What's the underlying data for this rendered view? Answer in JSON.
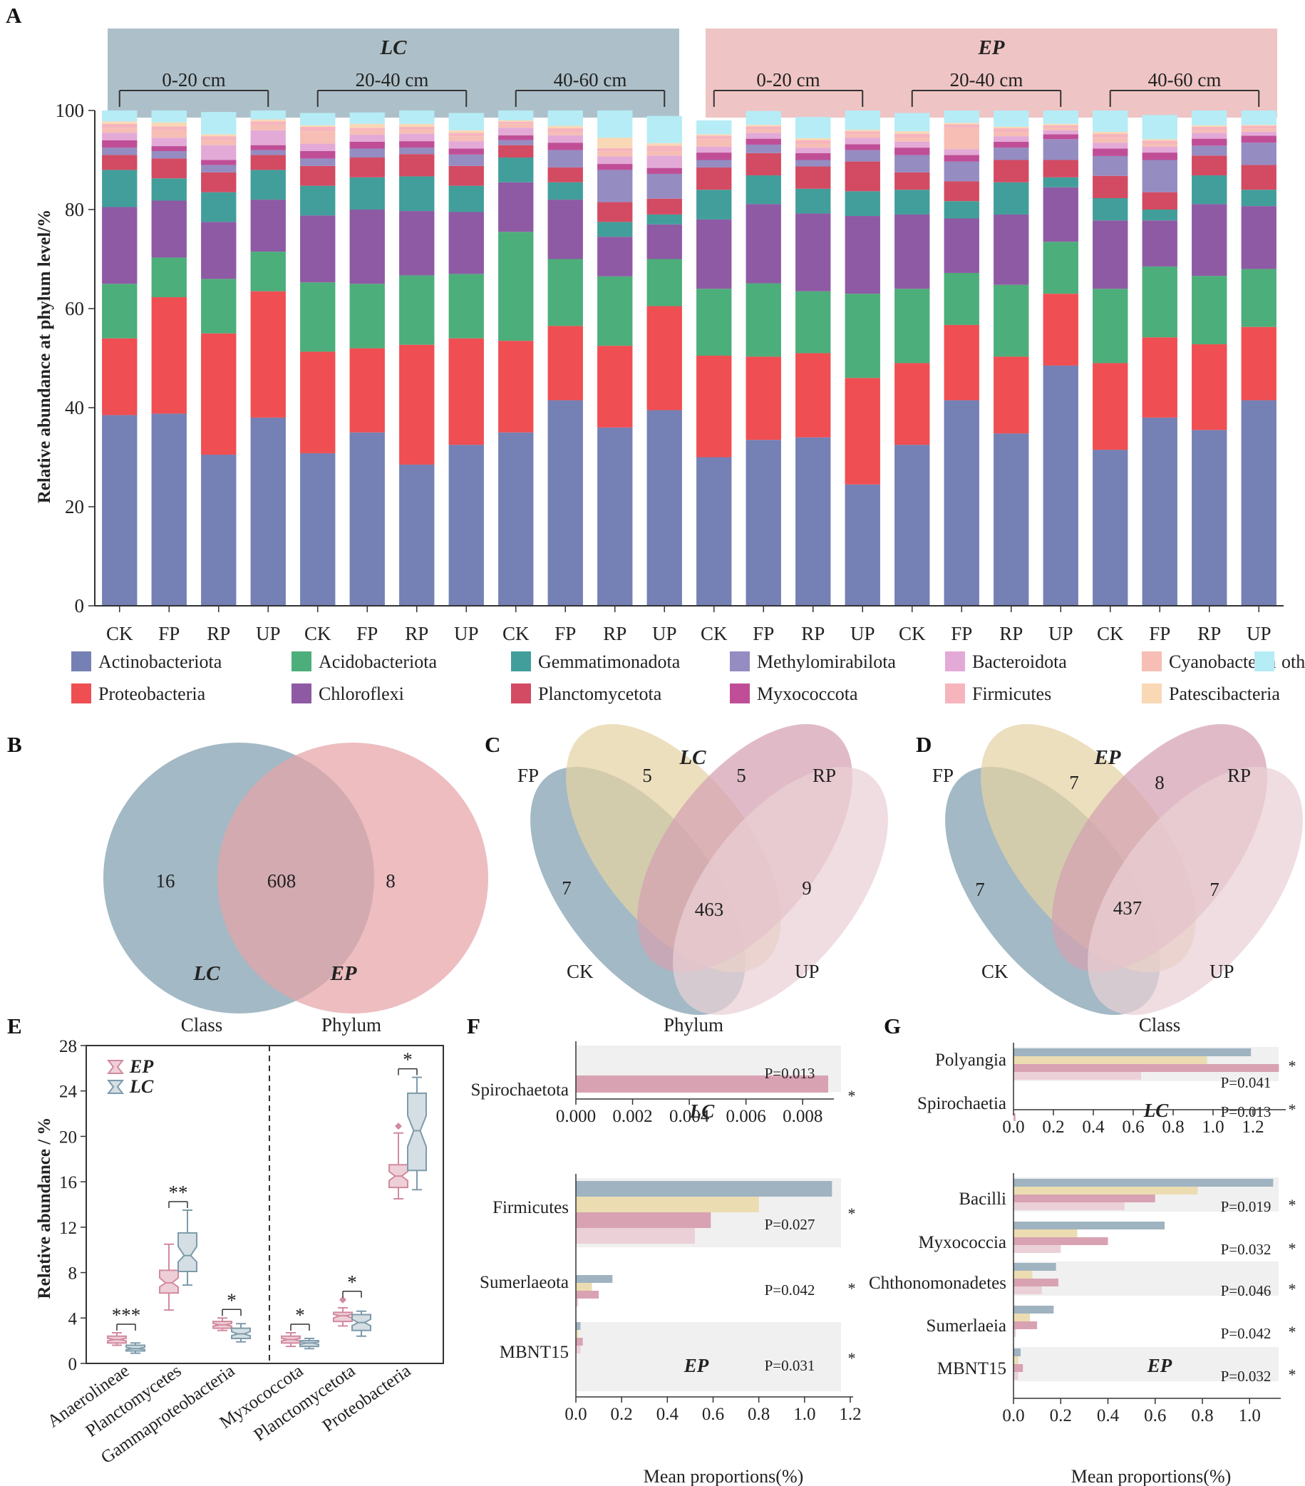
{
  "panel_letters": [
    "A",
    "B",
    "C",
    "D",
    "E",
    "F",
    "G"
  ],
  "colors": {
    "LC": "#9fb5c1",
    "EP": "#e6a4a8",
    "LC_band": "#adc0c9",
    "EP_band": "#efc4c4",
    "venn_CK": "#7f9eae",
    "venn_FP": "#e5d3a4",
    "venn_RP": "#d4a1b1",
    "venn_UP": "#ead0d6",
    "bar_lc": "#9fb3c0",
    "bar_fp": "#ecdcb1",
    "bar_rp": "#d8a2b2",
    "bar_up": "#ebd0d7",
    "ep_box": "#d18a9f",
    "lc_box": "#7d9bab"
  },
  "chart_data": [
    {
      "id": "A",
      "type": "bar",
      "stacked": true,
      "ylabel": "Relative abundance at phylum level/%",
      "ylim": [
        0,
        100
      ],
      "yticks": [
        0,
        20,
        40,
        60,
        80,
        100
      ],
      "groups": [
        {
          "name": "LC",
          "depths": [
            "0-20 cm",
            "20-40 cm",
            "40-60 cm"
          ]
        },
        {
          "name": "EP",
          "depths": [
            "0-20 cm",
            "20-40 cm",
            "40-60 cm"
          ]
        }
      ],
      "categories": [
        "CK",
        "FP",
        "RP",
        "UP",
        "CK",
        "FP",
        "RP",
        "UP",
        "CK",
        "FP",
        "RP",
        "UP",
        "CK",
        "FP",
        "RP",
        "UP",
        "CK",
        "FP",
        "RP",
        "UP",
        "CK",
        "FP",
        "RP",
        "UP"
      ],
      "legend": [
        {
          "name": "Actinobacteriota",
          "color": "#7580b4"
        },
        {
          "name": "Acidobacteriota",
          "color": "#4cae7a"
        },
        {
          "name": "Gemmatimonadota",
          "color": "#429e9a"
        },
        {
          "name": "Methylomirabilota",
          "color": "#958cc2"
        },
        {
          "name": "Bacteroidota",
          "color": "#e3aad7"
        },
        {
          "name": "Cyanobacteria",
          "color": "#f6beb4"
        },
        {
          "name": "others",
          "color": "#b5ecf6"
        },
        {
          "name": "Proteobacteria",
          "color": "#ef4e52"
        },
        {
          "name": "Chloroflexi",
          "color": "#8e5aa4"
        },
        {
          "name": "Planctomycetota",
          "color": "#d24b62"
        },
        {
          "name": "Myxococcota",
          "color": "#c04e97"
        },
        {
          "name": "Firmicutes",
          "color": "#f6b5bd"
        },
        {
          "name": "Patescibacteria",
          "color": "#f9d8b5"
        }
      ],
      "series": [
        {
          "name": "Actinobacteriota",
          "color": "#7580b4",
          "values": [
            38.5,
            38.8,
            30.5,
            38,
            30.8,
            35,
            28.5,
            32.5,
            35,
            41.5,
            36,
            39.5,
            30,
            33.5,
            34,
            24.5,
            32.5,
            41.5,
            34.8,
            48.5,
            31.5,
            38,
            35.5,
            41.5
          ]
        },
        {
          "name": "Proteobacteria",
          "color": "#ef4e52",
          "values": [
            15.5,
            23.5,
            24.5,
            25.5,
            20.5,
            17,
            24.2,
            21.5,
            18.5,
            15,
            16.5,
            21,
            20.5,
            16.8,
            17,
            21.5,
            16.5,
            15.2,
            15.5,
            14.5,
            17.5,
            16.2,
            17.3,
            14.8
          ]
        },
        {
          "name": "Acidobacteriota",
          "color": "#4cae7a",
          "values": [
            11,
            8,
            11,
            8,
            14,
            13,
            14,
            13,
            22,
            13.5,
            14,
            9.5,
            13.5,
            14.8,
            12.5,
            17,
            15,
            10.5,
            14.5,
            10.5,
            15,
            14.3,
            13.8,
            11.7
          ]
        },
        {
          "name": "Chloroflexi",
          "color": "#8e5aa4",
          "values": [
            15.5,
            11.5,
            11.5,
            10.5,
            13.5,
            15,
            13,
            12.5,
            10,
            12,
            8,
            7,
            14,
            16,
            15.7,
            15.7,
            15,
            11,
            14.2,
            11,
            13.8,
            9.3,
            14.5,
            12.7
          ]
        },
        {
          "name": "Gemmatimonadota",
          "color": "#429e9a",
          "values": [
            7.5,
            4.5,
            6,
            6,
            6,
            6.5,
            7,
            5.3,
            5,
            3.5,
            3,
            2,
            6,
            5.8,
            5,
            5,
            5,
            3.5,
            6.5,
            2,
            4.5,
            2.2,
            5.8,
            3.3
          ]
        },
        {
          "name": "Planctomycetota",
          "color": "#d24b62",
          "values": [
            3,
            4,
            4,
            3,
            4,
            4,
            4.5,
            4,
            2.5,
            3,
            4,
            3.2,
            4.5,
            4.5,
            4.5,
            6,
            3.5,
            4,
            4.5,
            3.5,
            4.5,
            3.5,
            4,
            5
          ]
        },
        {
          "name": "Methylomirabilota",
          "color": "#958cc2",
          "values": [
            1.5,
            1.5,
            1.5,
            1,
            1.5,
            1.8,
            1.3,
            2.3,
            1,
            3.5,
            6.5,
            5,
            1.5,
            1.7,
            1.3,
            2.3,
            3.5,
            4,
            2.5,
            4.2,
            4,
            6.5,
            2,
            4.5
          ]
        },
        {
          "name": "Myxococcota",
          "color": "#c04e97",
          "values": [
            1.5,
            1,
            1,
            1,
            1.5,
            1.4,
            1.3,
            1.2,
            1,
            1.5,
            1.2,
            1.2,
            1.5,
            1.2,
            1.4,
            1.2,
            1.5,
            1.3,
            1.2,
            1,
            1.5,
            1.5,
            1.4,
            1.4
          ]
        },
        {
          "name": "Bacteroidota",
          "color": "#e3aad7",
          "values": [
            1.5,
            1.7,
            3,
            3,
            1.5,
            1.4,
            1.5,
            1.5,
            1.5,
            1.5,
            1.5,
            2.5,
            1.2,
            1.2,
            1.1,
            1.3,
            1.2,
            1.2,
            1.1,
            0.8,
            1.2,
            1.2,
            1.2,
            0.8
          ]
        },
        {
          "name": "Cyanobacteria",
          "color": "#f6beb4",
          "values": [
            1,
            1.5,
            1,
            1,
            2.5,
            1,
            0.8,
            1,
            0.8,
            0.6,
            1,
            0.8,
            1.5,
            0.7,
            0.8,
            0.7,
            0.9,
            4.3,
            0.8,
            0.5,
            1,
            0.6,
            0.5,
            0.6
          ]
        },
        {
          "name": "Firmicutes",
          "color": "#f6b5bd",
          "values": [
            0.8,
            0.8,
            0.8,
            0.8,
            0.9,
            0.4,
            0.6,
            0.7,
            0.4,
            0.8,
            0.7,
            1.2,
            0.7,
            0.6,
            0.7,
            0.6,
            0.7,
            0.7,
            0.8,
            0.5,
            0.8,
            0.6,
            0.7,
            0.6
          ]
        },
        {
          "name": "Patescibacteria",
          "color": "#f9d8b5",
          "values": [
            0.5,
            0.8,
            0.4,
            0.4,
            0.3,
            0.8,
            0.6,
            0.5,
            0.3,
            0.5,
            2.1,
            0.5,
            0.3,
            0.3,
            0.4,
            0.3,
            0.5,
            0.3,
            0.3,
            0.3,
            0.4,
            0.3,
            0.3,
            0.2
          ]
        },
        {
          "name": "others",
          "color": "#b5ecf6",
          "values": [
            2.7,
            2.4,
            4.5,
            3.3,
            2.5,
            2.3,
            3.2,
            3.5,
            2.5,
            3.6,
            5.5,
            5.5,
            2.8,
            2.8,
            4.3,
            4.4,
            3.7,
            2.5,
            3.3,
            2.7,
            4.3,
            4.9,
            3.3,
            3
          ]
        }
      ]
    },
    {
      "id": "B",
      "type": "venn",
      "sets": [
        "LC",
        "EP"
      ],
      "values": {
        "LC_only": 16,
        "both": 608,
        "EP_only": 8
      }
    },
    {
      "id": "C",
      "type": "venn",
      "title": "LC",
      "sets": [
        "FP",
        "RP",
        "CK",
        "UP"
      ],
      "values": {
        "FP_only": 5,
        "RP_only": 5,
        "CK_only": 7,
        "UP_only": 9,
        "all": 463
      }
    },
    {
      "id": "D",
      "type": "venn",
      "title": "EP",
      "sets": [
        "FP",
        "RP",
        "CK",
        "UP"
      ],
      "values": {
        "FP_only": 7,
        "RP_only": 8,
        "CK_only": 7,
        "UP_only": 7,
        "all": 437
      }
    },
    {
      "id": "E",
      "type": "box",
      "ylabel": "Relative abundance / %",
      "ylim": [
        0,
        28
      ],
      "yticks": [
        0,
        4,
        8,
        12,
        16,
        20,
        24,
        28
      ],
      "section_labels": [
        "Class",
        "Phylum"
      ],
      "legend": [
        "EP",
        "LC"
      ],
      "categories": [
        "Anaerolineae",
        "Planctomycetes",
        "Gammaproteobacteria",
        "Myxococcota",
        "Planctomycetota",
        "Proteobacteria"
      ],
      "significance": [
        "***",
        "**",
        "*",
        "*",
        "*",
        "*"
      ],
      "series": [
        {
          "name": "EP",
          "boxes": [
            {
              "min": 1.6,
              "q1": 1.8,
              "median": 2.1,
              "q3": 2.4,
              "max": 2.7
            },
            {
              "min": 4.7,
              "q1": 6.2,
              "median": 7.1,
              "q3": 8.2,
              "max": 10.5
            },
            {
              "min": 2.9,
              "q1": 3.1,
              "median": 3.4,
              "q3": 3.7,
              "max": 4.0
            },
            {
              "min": 1.5,
              "q1": 1.8,
              "median": 2.1,
              "q3": 2.4,
              "max": 2.7
            },
            {
              "min": 3.3,
              "q1": 3.7,
              "median": 4.2,
              "q3": 4.5,
              "max": 4.9,
              "outlier": 5.6
            },
            {
              "min": 14.5,
              "q1": 15.5,
              "median": 16.5,
              "q3": 17.5,
              "max": 20.3,
              "outlier": 20.9
            }
          ]
        },
        {
          "name": "LC",
          "boxes": [
            {
              "min": 0.9,
              "q1": 1.1,
              "median": 1.3,
              "q3": 1.6,
              "max": 1.8
            },
            {
              "min": 6.9,
              "q1": 8.1,
              "median": 9.5,
              "q3": 11.5,
              "max": 13.5
            },
            {
              "min": 1.9,
              "q1": 2.2,
              "median": 2.6,
              "q3": 3.1,
              "max": 3.5
            },
            {
              "min": 1.3,
              "q1": 1.5,
              "median": 1.8,
              "q3": 2.0,
              "max": 2.2
            },
            {
              "min": 2.4,
              "q1": 2.9,
              "median": 3.6,
              "q3": 4.3,
              "max": 4.6
            },
            {
              "min": 15.3,
              "q1": 17.0,
              "median": 20.5,
              "q3": 23.8,
              "max": 25.2
            }
          ]
        }
      ]
    },
    {
      "id": "F",
      "type": "bar",
      "orientation": "horizontal",
      "title": "Phylum",
      "xlabel": "Mean proportions(%)",
      "sub_charts": [
        {
          "label": "LC",
          "xlim": [
            0,
            0.009
          ],
          "xticks": [
            "0.000",
            "0.002",
            "0.004",
            "0.006",
            "0.008"
          ],
          "categories": [
            "Spirochaetota"
          ],
          "p_values": [
            "P=0.013"
          ],
          "significance": [
            "*"
          ],
          "series": [
            {
              "name": "RP",
              "values": [
                0.0089
              ]
            }
          ]
        },
        {
          "label": "EP",
          "xlim": [
            0,
            1.2
          ],
          "xticks": [
            "0.0",
            "0.2",
            "0.4",
            "0.6",
            "0.8",
            "1.0",
            "1.2"
          ],
          "categories": [
            "Firmicutes",
            "Sumerlaeota",
            "MBNT15"
          ],
          "p_values": [
            "P=0.027",
            "P=0.042",
            "P=0.031"
          ],
          "significance": [
            "*",
            "*",
            "*"
          ],
          "series": [
            {
              "name": "CK",
              "values": [
                1.12,
                0.16,
                0.02
              ]
            },
            {
              "name": "FP",
              "values": [
                0.8,
                0.07,
                0.01
              ]
            },
            {
              "name": "RP",
              "values": [
                0.59,
                0.1,
                0.03
              ]
            },
            {
              "name": "UP",
              "values": [
                0.52,
                0.01,
                0.02
              ]
            }
          ]
        }
      ]
    },
    {
      "id": "G",
      "type": "bar",
      "orientation": "horizontal",
      "title": "Class",
      "xlabel": "Mean proportions(%)",
      "sub_charts": [
        {
          "label": "LC",
          "xlim": [
            0,
            1.35
          ],
          "xticks": [
            "0.0",
            "0.2",
            "0.4",
            "0.6",
            "0.8",
            "1.0",
            "1.2"
          ],
          "categories": [
            "Polyangia",
            "Spirochaetia"
          ],
          "p_values": [
            "P=0.041",
            "P=0.013"
          ],
          "significance": [
            "*",
            "*"
          ],
          "series": [
            {
              "name": "CK",
              "values": [
                1.19,
                0.0
              ]
            },
            {
              "name": "FP",
              "values": [
                0.97,
                0.0
              ]
            },
            {
              "name": "RP",
              "values": [
                1.33,
                0.01
              ]
            },
            {
              "name": "UP",
              "values": [
                0.64,
                0.0
              ]
            }
          ]
        },
        {
          "label": "EP",
          "xlim": [
            0,
            1.12
          ],
          "xticks": [
            "0.0",
            "0.2",
            "0.4",
            "0.6",
            "0.8",
            "1.0"
          ],
          "categories": [
            "Bacilli",
            "Myxococcia",
            "Chthonomonadetes",
            "Sumerlaeia",
            "MBNT15"
          ],
          "p_values": [
            "P=0.019",
            "P=0.032",
            "P=0.046",
            "P=0.042",
            "P=0.032"
          ],
          "significance": [
            "*",
            "*",
            "*",
            "*",
            "*"
          ],
          "series": [
            {
              "name": "CK",
              "values": [
                1.1,
                0.64,
                0.18,
                0.17,
                0.03
              ]
            },
            {
              "name": "FP",
              "values": [
                0.78,
                0.27,
                0.08,
                0.07,
                0.02
              ]
            },
            {
              "name": "RP",
              "values": [
                0.6,
                0.4,
                0.19,
                0.1,
                0.04
              ]
            },
            {
              "name": "UP",
              "values": [
                0.47,
                0.2,
                0.12,
                0.01,
                0.02
              ]
            }
          ]
        }
      ]
    }
  ]
}
